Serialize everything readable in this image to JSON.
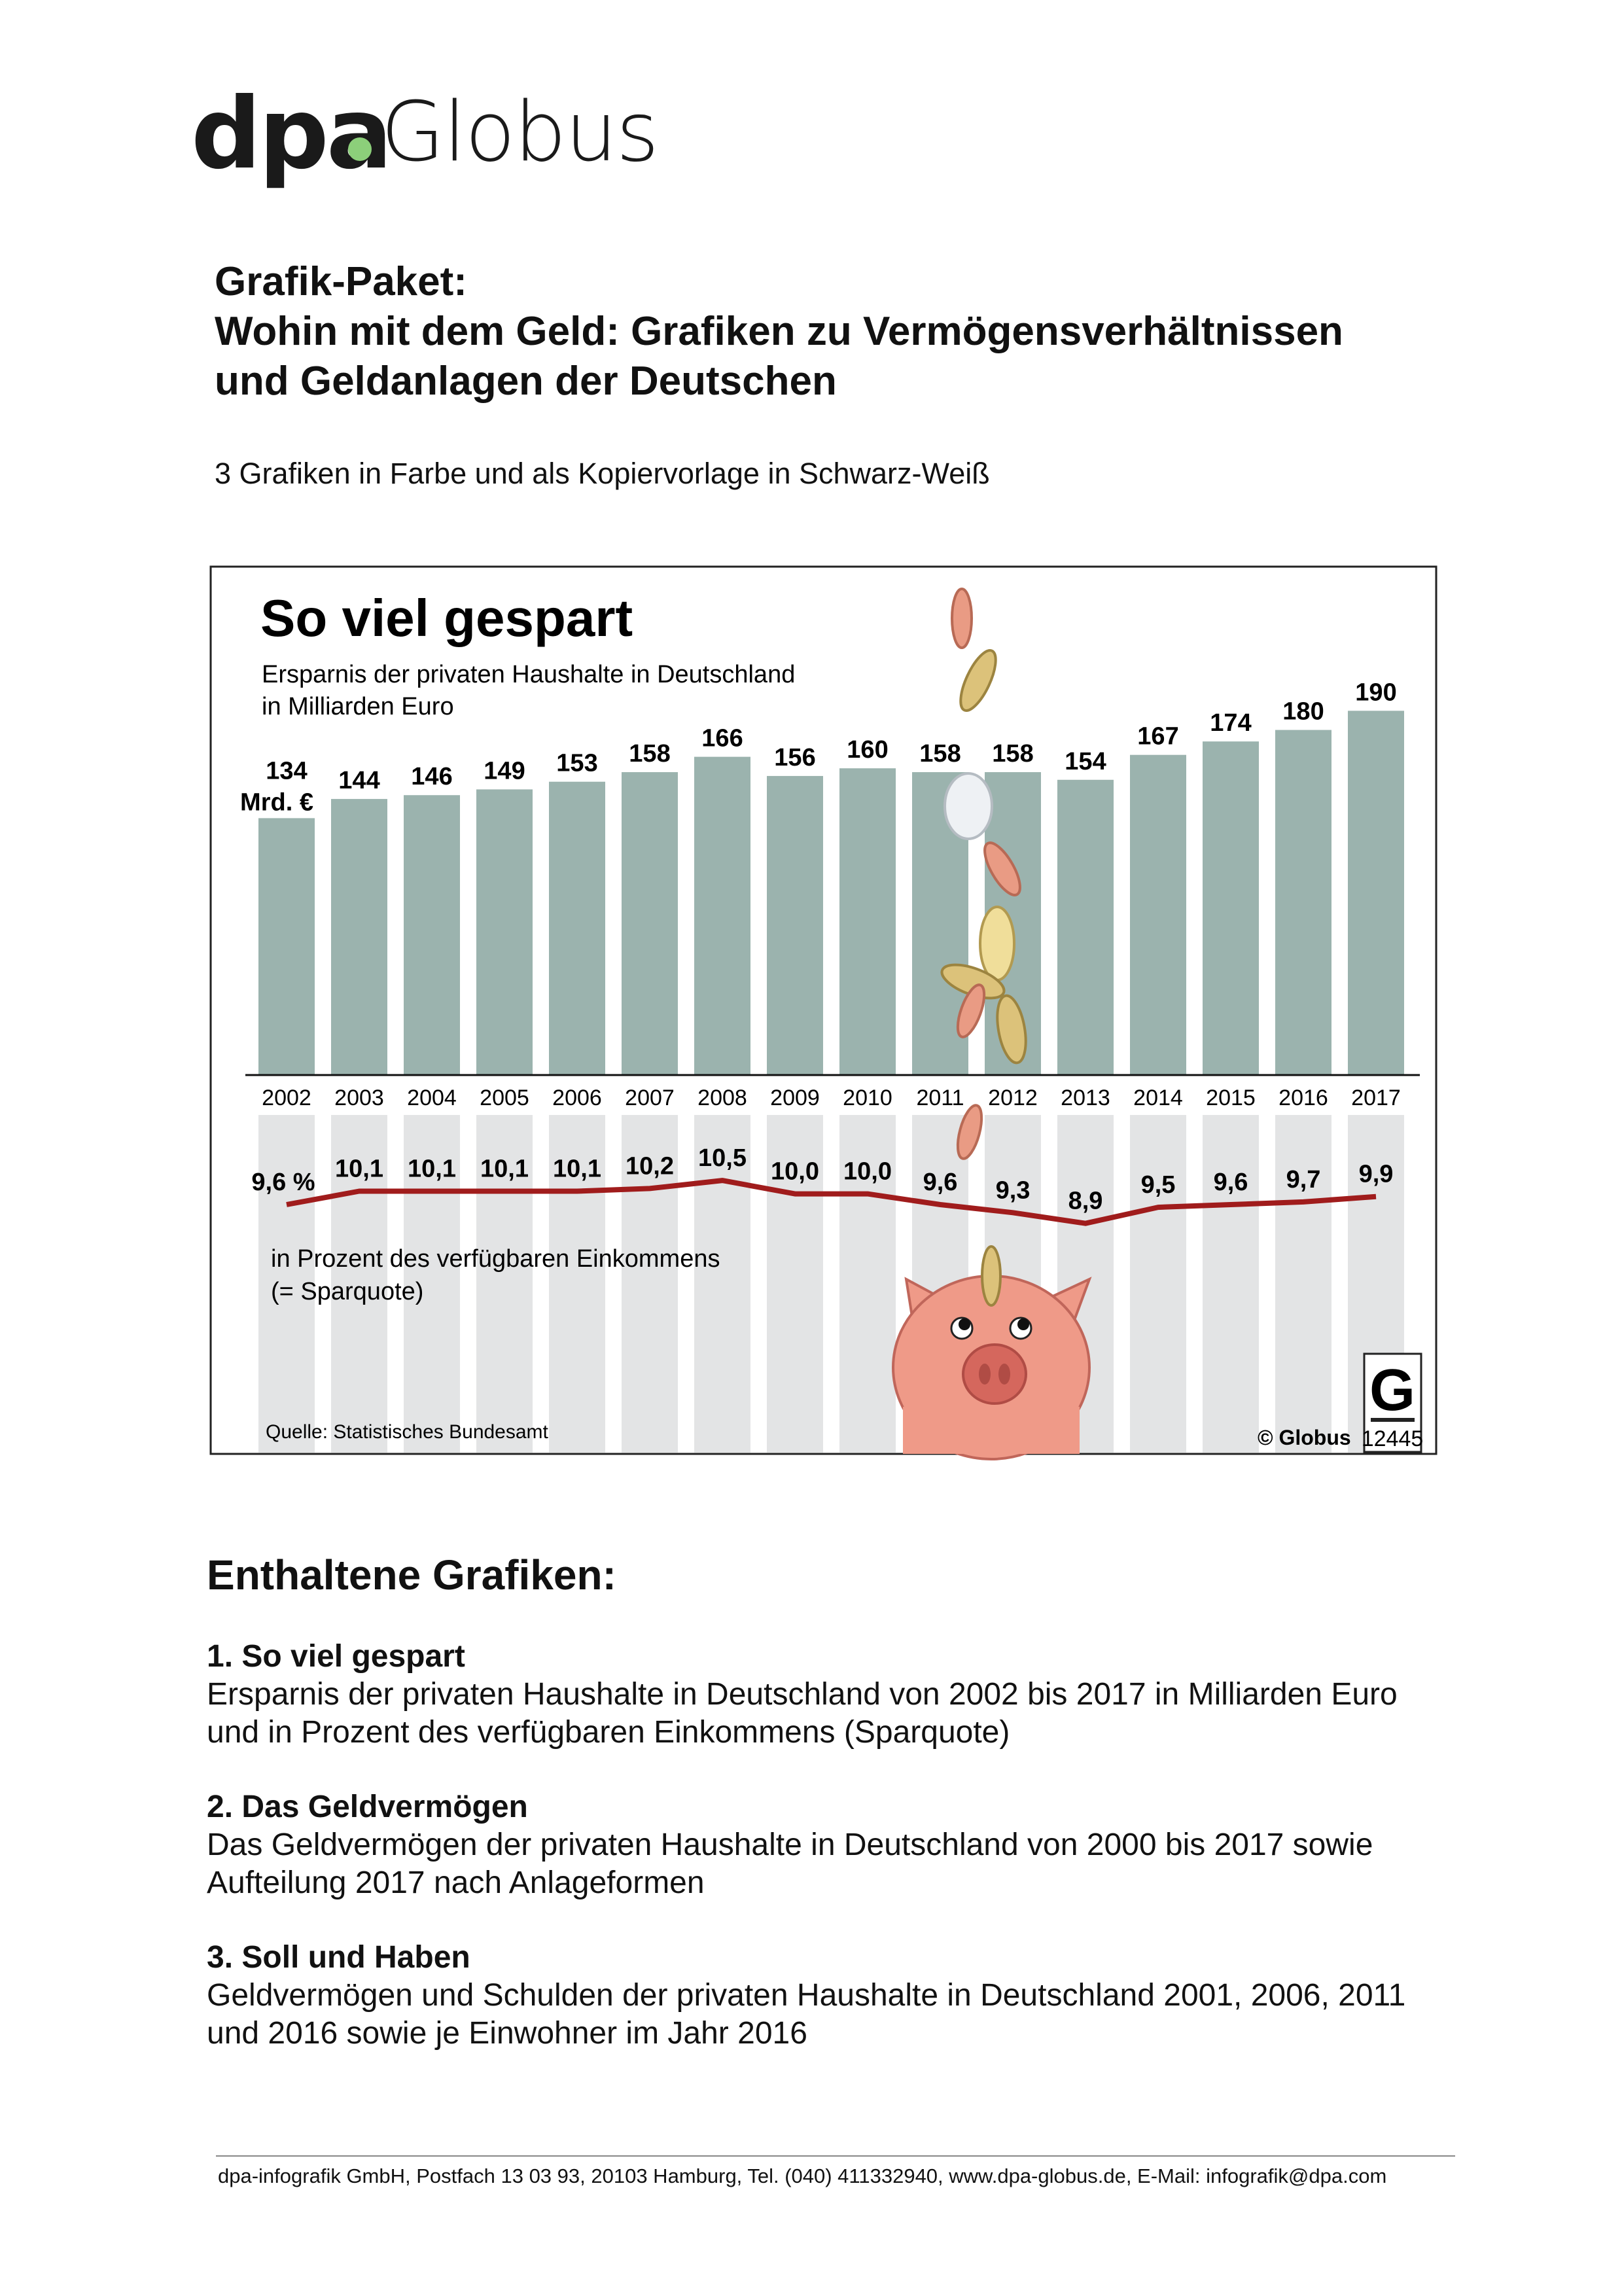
{
  "logo": {
    "part1": "dpa",
    "part2": "Globus",
    "dot_color": "#8ccf7a"
  },
  "header": {
    "line1": "Grafik-Paket:",
    "line2": "Wohin mit dem Geld: Grafiken zu Vermögensverhältnissen",
    "line3": "und Geldanlagen der Deutschen",
    "subtitle": "3 Grafiken in Farbe und als Kopiervorlage in Schwarz-Weiß"
  },
  "chart_data": {
    "type": "bar",
    "title": "So viel gespart",
    "subtitle_line1": "Ersparnis der privaten Haushalte in Deutschland",
    "subtitle_line2": "in Milliarden Euro",
    "categories": [
      "2002",
      "2003",
      "2004",
      "2005",
      "2006",
      "2007",
      "2008",
      "2009",
      "2010",
      "2011",
      "2012",
      "2013",
      "2014",
      "2015",
      "2016",
      "2017"
    ],
    "values": [
      134,
      144,
      146,
      149,
      153,
      158,
      166,
      156,
      160,
      158,
      158,
      154,
      167,
      174,
      180,
      190
    ],
    "first_value_unit": "Mrd. €",
    "bar_color": "#9bb3ae",
    "line_series": {
      "type": "line",
      "values": [
        9.6,
        10.1,
        10.1,
        10.1,
        10.1,
        10.2,
        10.5,
        10.0,
        10.0,
        9.6,
        9.3,
        8.9,
        9.5,
        9.6,
        9.7,
        9.9
      ],
      "labels": [
        "9,6 %",
        "10,1",
        "10,1",
        "10,1",
        "10,1",
        "10,2",
        "10,5",
        "10,0",
        "10,0",
        "9,6",
        "9,3",
        "8,9",
        "9,5",
        "9,6",
        "9,7",
        "9,9"
      ],
      "caption_line1": "in Prozent des verfügbaren Einkommens",
      "caption_line2": "(= Sparquote)",
      "color": "#a01c1c"
    },
    "source": "Quelle: Statistisches Bundesamt",
    "copyright": "© Globus",
    "graphic_number": "12445",
    "stripe_color": "#e3e4e5"
  },
  "contents": {
    "heading": "Enthaltene Grafiken:",
    "items": [
      {
        "title": "1. So viel gespart",
        "lines": [
          "Ersparnis der privaten Haushalte in Deutschland von 2002 bis 2017 in Milliarden Euro",
          "und in Prozent des verfügbaren Einkommens (Sparquote)"
        ]
      },
      {
        "title": "2. Das Geldvermögen",
        "lines": [
          "Das Geldvermögen der privaten Haushalte in Deutschland von 2000 bis 2017 sowie",
          "Aufteilung 2017 nach Anlageformen"
        ]
      },
      {
        "title": "3. Soll und Haben",
        "lines": [
          "Geldvermögen und Schulden der privaten Haushalte in Deutschland 2001, 2006, 2011",
          "und 2016 sowie je Einwohner im Jahr 2016"
        ]
      }
    ]
  },
  "footer": {
    "text": "dpa-infografik GmbH, Postfach 13 03 93, 20103 Hamburg, Tel. (040) 411332940, www.dpa-globus.de, E-Mail: infografik@dpa.com"
  }
}
